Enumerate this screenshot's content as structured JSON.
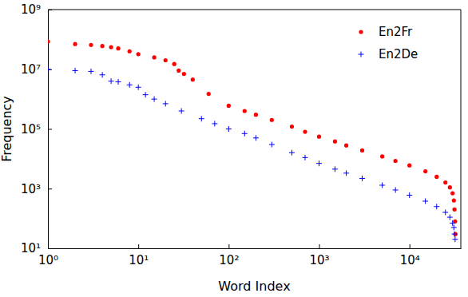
{
  "chart_data": {
    "type": "scatter",
    "x_label": "Word Index",
    "y_label": "Frequency",
    "log": true,
    "legend": "upper right",
    "xlim": [
      1,
      37000
    ],
    "ylim": [
      10,
      1000000000
    ],
    "xticks": [
      {
        "value": 1,
        "label": "10⁰"
      },
      {
        "value": 10,
        "label": "10¹"
      },
      {
        "value": 100,
        "label": "10²"
      },
      {
        "value": 1000,
        "label": "10³"
      },
      {
        "value": 10000,
        "label": "10⁴"
      }
    ],
    "yticks": [
      {
        "value": 10,
        "label": "10¹"
      },
      {
        "value": 1000,
        "label": "10³"
      },
      {
        "value": 100000,
        "label": "10⁵"
      },
      {
        "value": 10000000,
        "label": "10⁷"
      },
      {
        "value": 1000000000,
        "label": "10⁹"
      }
    ],
    "series": [
      {
        "name": "En2Fr",
        "color": "#ff0000",
        "marker": "circle",
        "x": [
          1,
          2,
          3,
          4,
          5,
          6,
          8,
          10,
          15,
          20,
          25,
          28,
          32,
          40,
          60,
          100,
          150,
          200,
          300,
          500,
          700,
          1000,
          1500,
          2000,
          3000,
          5000,
          7000,
          10000,
          15000,
          20000,
          25000,
          28000,
          30000,
          31000,
          31500,
          32000,
          32200
        ],
        "values": [
          85000000,
          70000000,
          65000000,
          60000000,
          55000000,
          50000000,
          40000000,
          32000000,
          25000000,
          20000000,
          15000000,
          9000000,
          7000000,
          4500000,
          1500000,
          600000,
          400000,
          300000,
          200000,
          120000,
          80000,
          55000,
          38000,
          28000,
          19000,
          12000,
          8500,
          6000,
          3800,
          2500,
          1600,
          1100,
          700,
          400,
          200,
          80,
          30
        ]
      },
      {
        "name": "En2De",
        "color": "#0000ff",
        "marker": "plus",
        "x": [
          1,
          2,
          3,
          4,
          5,
          6,
          8,
          10,
          12,
          15,
          20,
          30,
          50,
          70,
          100,
          150,
          200,
          300,
          500,
          700,
          1000,
          1500,
          2000,
          3000,
          5000,
          7000,
          10000,
          15000,
          20000,
          25000,
          28000,
          30000,
          31000,
          31500,
          32000
        ],
        "values": [
          10000000,
          9000000,
          8500000,
          6500000,
          4000000,
          3800000,
          3000000,
          2500000,
          1400000,
          1000000,
          700000,
          400000,
          220000,
          150000,
          100000,
          70000,
          50000,
          30000,
          16000,
          11000,
          7000,
          4500,
          3300,
          2200,
          1300,
          900,
          600,
          380,
          250,
          160,
          110,
          70,
          50,
          30,
          20
        ]
      }
    ]
  }
}
